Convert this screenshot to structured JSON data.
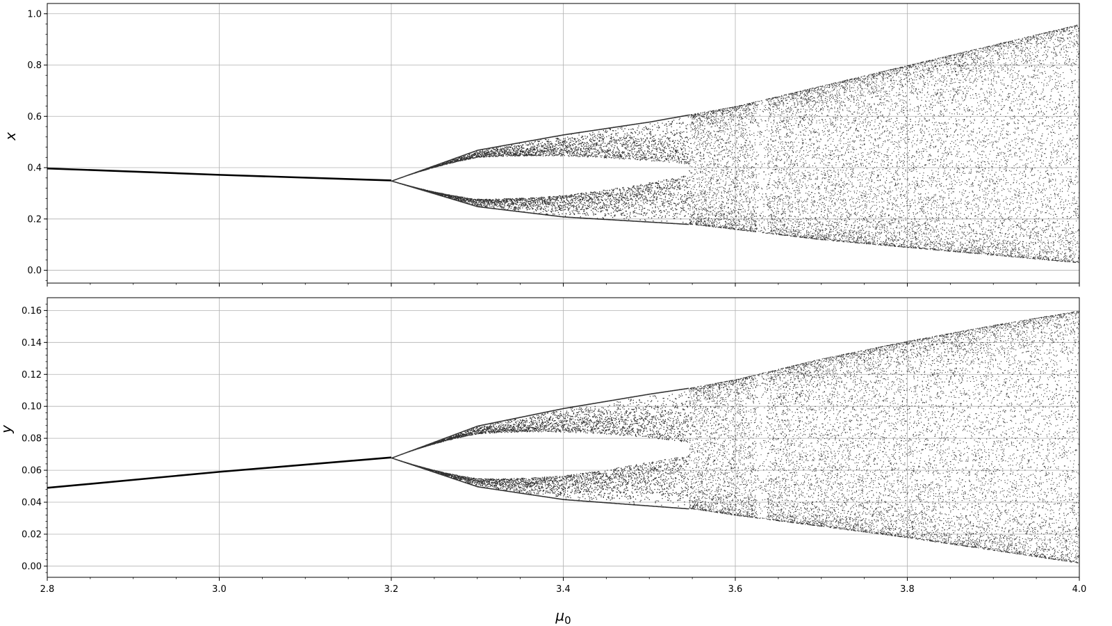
{
  "chart_data": [
    {
      "type": "scatter",
      "title": "",
      "xlabel": "",
      "ylabel": "x",
      "xlim": [
        2.8,
        4.0
      ],
      "ylim": [
        -0.05,
        1.04
      ],
      "xticks": [
        2.8,
        3.0,
        3.2,
        3.4,
        3.6,
        3.8,
        4.0
      ],
      "xtick_labels": [],
      "yticks": [
        0.0,
        0.2,
        0.4,
        0.6,
        0.8,
        1.0
      ],
      "ytick_labels": [
        "0.0",
        "0.2",
        "0.4",
        "0.6",
        "0.8",
        "1.0"
      ],
      "grid": true,
      "marker_color": "#000000",
      "series": [
        {
          "description_free": true,
          "stable_fixed_point": {
            "x": [
              2.8,
              3.0,
              3.2
            ],
            "y": [
              0.397,
              0.372,
              0.35
            ]
          },
          "period_doubling_at": 3.2,
          "upper_envelope": {
            "x": [
              3.2,
              3.3,
              3.4,
              3.5,
              3.55,
              3.6,
              3.7,
              3.8,
              3.9,
              4.0
            ],
            "y": [
              0.35,
              0.47,
              0.53,
              0.58,
              0.61,
              0.64,
              0.72,
              0.8,
              0.88,
              0.96
            ]
          },
          "lower_envelope": {
            "x": [
              3.2,
              3.3,
              3.4,
              3.5,
              3.55,
              3.6,
              3.7,
              3.8,
              3.9,
              4.0
            ],
            "y": [
              0.35,
              0.25,
              0.21,
              0.19,
              0.18,
              0.16,
              0.12,
              0.09,
              0.06,
              0.03
            ]
          },
          "chaos_onset": 3.545,
          "window_at": 3.63
        }
      ]
    },
    {
      "type": "scatter",
      "title": "",
      "xlabel": "μ0",
      "ylabel": "y",
      "xlim": [
        2.8,
        4.0
      ],
      "ylim": [
        -0.007,
        0.168
      ],
      "xticks": [
        2.8,
        3.0,
        3.2,
        3.4,
        3.6,
        3.8,
        4.0
      ],
      "xtick_labels": [
        "2.8",
        "3.0",
        "3.2",
        "3.4",
        "3.6",
        "3.8",
        "4.0"
      ],
      "yticks": [
        0.0,
        0.02,
        0.04,
        0.06,
        0.08,
        0.1,
        0.12,
        0.14,
        0.16
      ],
      "ytick_labels": [
        "0.00",
        "0.02",
        "0.04",
        "0.06",
        "0.08",
        "0.10",
        "0.12",
        "0.14",
        "0.16"
      ],
      "grid": true,
      "marker_color": "#000000",
      "series": [
        {
          "stable_fixed_point": {
            "x": [
              2.8,
              3.0,
              3.2
            ],
            "y": [
              0.049,
              0.059,
              0.068
            ]
          },
          "period_doubling_at": 3.2,
          "upper_envelope": {
            "x": [
              3.2,
              3.3,
              3.4,
              3.5,
              3.55,
              3.6,
              3.7,
              3.8,
              3.9,
              4.0
            ],
            "y": [
              0.068,
              0.088,
              0.099,
              0.108,
              0.112,
              0.117,
              0.13,
              0.141,
              0.151,
              0.16
            ]
          },
          "lower_envelope": {
            "x": [
              3.2,
              3.3,
              3.4,
              3.5,
              3.55,
              3.6,
              3.7,
              3.8,
              3.9,
              4.0
            ],
            "y": [
              0.068,
              0.05,
              0.042,
              0.038,
              0.036,
              0.032,
              0.025,
              0.018,
              0.01,
              0.002
            ]
          },
          "chaos_onset": 3.545,
          "window_at": 3.63
        }
      ]
    }
  ]
}
